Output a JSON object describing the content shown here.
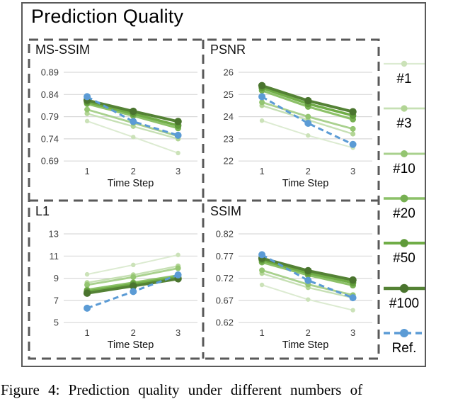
{
  "figure": {
    "title": "Prediction Quality",
    "caption": "Figure 4: Prediction quality under different numbers of"
  },
  "colors": {
    "border": "#595959",
    "grid": "#d9d9d9",
    "tick_text": "#3f3f3f",
    "ref_blue": "#5b9bd5",
    "green_dark": "#548235"
  },
  "legend": [
    {
      "label": "#1",
      "color": "#dcebd1",
      "marker": "#cbe2b8",
      "dashed": false
    },
    {
      "label": "#3",
      "color": "#c6e0b4",
      "marker": "#b2d595",
      "dashed": false
    },
    {
      "label": "#10",
      "color": "#a9d18e",
      "marker": "#94c571",
      "dashed": false
    },
    {
      "label": "#20",
      "color": "#8cc168",
      "marker": "#77b052",
      "dashed": false
    },
    {
      "label": "#50",
      "color": "#70ad47",
      "marker": "#5f9a3a",
      "dashed": false
    },
    {
      "label": "#100",
      "color": "#548235",
      "marker": "#4a742e",
      "dashed": false
    },
    {
      "label": "Ref.",
      "color": "#5b9bd5",
      "marker": "#5b9bd5",
      "dashed": true
    }
  ],
  "chart_data": [
    {
      "type": "line",
      "title": "MS-SSIM",
      "xlabel": "Time Step",
      "x": [
        "1",
        "2",
        "3"
      ],
      "ytick_labels": [
        "0.89",
        "0.84",
        "0.79",
        "0.74",
        "0.69"
      ],
      "yticks": [
        0.89,
        0.84,
        0.79,
        0.74,
        0.69
      ],
      "series": [
        {
          "name": "#1",
          "values": [
            0.78,
            0.744,
            0.708
          ]
        },
        {
          "name": "#3",
          "values": [
            0.797,
            0.768,
            0.74
          ]
        },
        {
          "name": "#10",
          "values": [
            0.806,
            0.776,
            0.746
          ]
        },
        {
          "name": "#20",
          "values": [
            0.819,
            0.792,
            0.764
          ]
        },
        {
          "name": "#50",
          "values": [
            0.823,
            0.797,
            0.77
          ]
        },
        {
          "name": "#100",
          "values": [
            0.827,
            0.802,
            0.779
          ]
        },
        {
          "name": "Ref.",
          "values": [
            0.835,
            0.779,
            0.748
          ]
        }
      ]
    },
    {
      "type": "line",
      "title": "PSNR",
      "xlabel": "Time Step",
      "x": [
        "1",
        "2",
        "3"
      ],
      "ytick_labels": [
        "26",
        "25",
        "24",
        "23",
        "22"
      ],
      "yticks": [
        26,
        25,
        24,
        23,
        22
      ],
      "series": [
        {
          "name": "#1",
          "values": [
            23.82,
            23.15,
            22.6
          ]
        },
        {
          "name": "#3",
          "values": [
            24.5,
            23.85,
            23.22
          ]
        },
        {
          "name": "#10",
          "values": [
            24.65,
            24.0,
            23.45
          ]
        },
        {
          "name": "#20",
          "values": [
            25.18,
            24.45,
            23.88
          ]
        },
        {
          "name": "#50",
          "values": [
            25.3,
            24.58,
            24.05
          ]
        },
        {
          "name": "#100",
          "values": [
            25.4,
            24.72,
            24.22
          ]
        },
        {
          "name": "Ref.",
          "values": [
            24.9,
            23.7,
            22.75
          ]
        }
      ]
    },
    {
      "type": "line",
      "title": "L1",
      "xlabel": "Time Step",
      "x": [
        "1",
        "2",
        "3"
      ],
      "ytick_labels": [
        "13",
        "11",
        "9",
        "7",
        "5"
      ],
      "yticks": [
        13,
        11,
        9,
        7,
        5
      ],
      "series": [
        {
          "name": "#1",
          "values": [
            9.35,
            10.2,
            11.1
          ]
        },
        {
          "name": "#3",
          "values": [
            8.6,
            9.3,
            10.1
          ]
        },
        {
          "name": "#10",
          "values": [
            8.4,
            9.1,
            9.9
          ]
        },
        {
          "name": "#20",
          "values": [
            7.95,
            8.6,
            9.25
          ]
        },
        {
          "name": "#50",
          "values": [
            7.8,
            8.45,
            9.1
          ]
        },
        {
          "name": "#100",
          "values": [
            7.65,
            8.3,
            8.95
          ]
        },
        {
          "name": "Ref.",
          "values": [
            6.3,
            7.8,
            9.3
          ]
        }
      ]
    },
    {
      "type": "line",
      "title": "SSIM",
      "xlabel": "Time Step",
      "x": [
        "1",
        "2",
        "3"
      ],
      "ytick_labels": [
        "0.82",
        "0.77",
        "0.72",
        "0.67",
        "0.62"
      ],
      "yticks": [
        0.82,
        0.77,
        0.72,
        0.67,
        0.62
      ],
      "series": [
        {
          "name": "#1",
          "values": [
            0.705,
            0.672,
            0.648
          ]
        },
        {
          "name": "#3",
          "values": [
            0.731,
            0.699,
            0.676
          ]
        },
        {
          "name": "#10",
          "values": [
            0.738,
            0.706,
            0.682
          ]
        },
        {
          "name": "#20",
          "values": [
            0.756,
            0.727,
            0.704
          ]
        },
        {
          "name": "#50",
          "values": [
            0.761,
            0.732,
            0.71
          ]
        },
        {
          "name": "#100",
          "values": [
            0.765,
            0.737,
            0.716
          ]
        },
        {
          "name": "Ref.",
          "values": [
            0.773,
            0.715,
            0.676
          ]
        }
      ]
    }
  ]
}
